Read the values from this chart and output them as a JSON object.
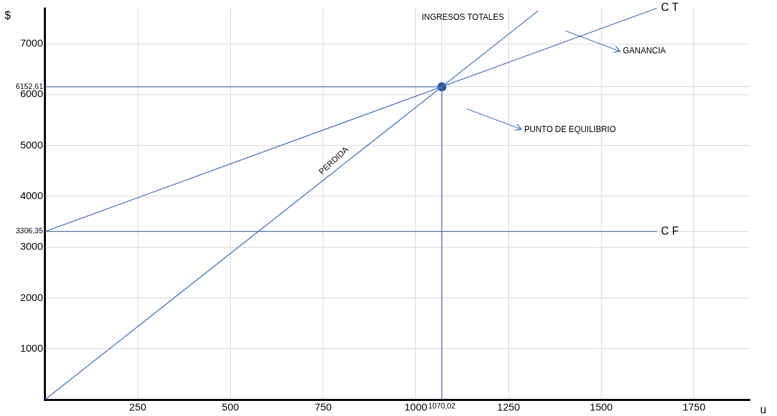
{
  "chart_data": {
    "type": "line",
    "xlabel": "u",
    "ylabel": "$",
    "xlim": [
      0,
      1900
    ],
    "xticks": [
      250,
      500,
      750,
      1000,
      {
        "value": 1070.02,
        "label": "1070,02"
      },
      1250,
      1500,
      1750
    ],
    "ylim": [
      0,
      7700
    ],
    "yticks": [
      1000,
      2000,
      3000,
      {
        "value": 3306.35,
        "label": "3306,35"
      },
      4000,
      5000,
      6000,
      {
        "value": 6152.61,
        "label": "6152,61"
      },
      7000
    ],
    "grid": true,
    "legend": false,
    "marker": "none",
    "line_style": "solid",
    "series": [
      {
        "name": "INGRESOS TOTALES",
        "color": "#4472c4",
        "x": [
          0,
          1330
        ],
        "values": [
          0,
          7650
        ]
      },
      {
        "name": "C T",
        "color": "#4472c4",
        "x": [
          0,
          1650
        ],
        "values": [
          3306.35,
          7700
        ]
      },
      {
        "name": "C F",
        "color": "#4472c4",
        "x": [
          0,
          1650
        ],
        "values": [
          3306.35,
          3306.35
        ]
      },
      {
        "color": "#4472c4",
        "x": [
          0,
          1070.02
        ],
        "values": [
          6152.61,
          6152.61
        ]
      },
      {
        "color": "#4472c4",
        "x": [
          1070.02,
          1070.02
        ],
        "values": [
          0,
          6152.61
        ]
      },
      {
        "type": "scatter",
        "marker": "circle",
        "color": "#2f5597",
        "x": [
          1070.02
        ],
        "values": [
          6152.61
        ]
      }
    ],
    "annotations": [
      "GANANCIA",
      "PUNTO DE EQUILIBRIO",
      "PERDIDA"
    ]
  }
}
